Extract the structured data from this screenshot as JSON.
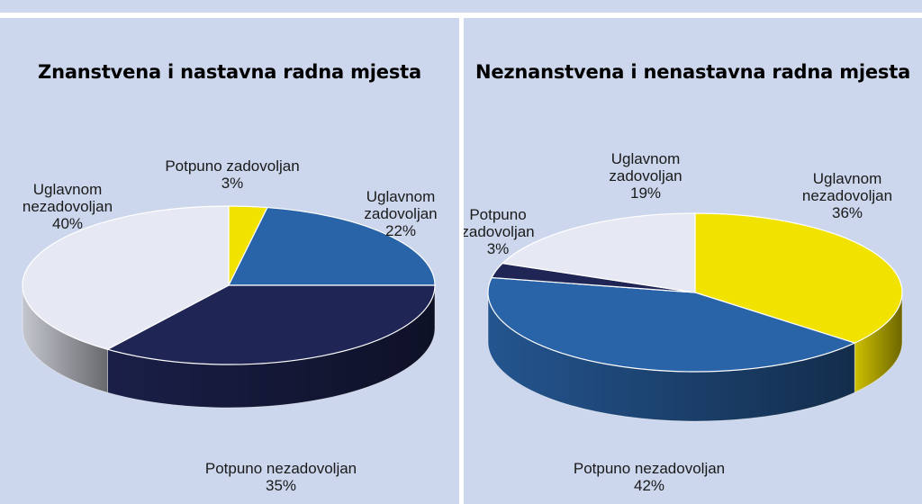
{
  "charts": [
    {
      "title": "Znanstvena i nastavna radna mjesta",
      "slices": [
        {
          "name": "Potpuno zadovoljan",
          "value": 3,
          "label_lines": [
            "Potpuno zadovoljan",
            "3%"
          ],
          "color": "#f2e200"
        },
        {
          "name": "Uglavnom zadovoljan",
          "value": 22,
          "label_lines": [
            "Uglavnom",
            "zadovoljan",
            "22%"
          ],
          "color": "#2a64a8"
        },
        {
          "name": "Potpuno nezadovoljan",
          "value": 35,
          "label_lines": [
            "Potpuno nezadovoljan",
            "35%"
          ],
          "color": "#1f2555"
        },
        {
          "name": "Uglavnom nezadovoljan",
          "value": 40,
          "label_lines": [
            "Uglavnom",
            "nezadovoljan",
            "40%"
          ],
          "color": "#e6e9f3"
        }
      ]
    },
    {
      "title": "Neznanstvena i nenastavna radna mjesta",
      "slices": [
        {
          "name": "Uglavnom nezadovoljan",
          "value": 36,
          "label_lines": [
            "Uglavnom",
            "nezadovoljan",
            "36%"
          ],
          "color": "#f2e200"
        },
        {
          "name": "Potpuno nezadovoljan",
          "value": 42,
          "label_lines": [
            "Potpuno nezadovoljan",
            "42%"
          ],
          "color": "#2a64a8"
        },
        {
          "name": "Potpuno zadovoljan",
          "value": 3,
          "label_lines": [
            "Potpuno",
            "zadovoljan",
            "3%"
          ],
          "color": "#1f2555"
        },
        {
          "name": "Uglavnom zadovoljan",
          "value": 19,
          "label_lines": [
            "Uglavnom",
            "zadovoljan",
            "19%"
          ],
          "color": "#e6e9f3"
        }
      ]
    }
  ],
  "chart_data": [
    {
      "type": "pie",
      "title": "Znanstvena i nastavna radna mjesta",
      "categories": [
        "Potpuno zadovoljan",
        "Uglavnom zadovoljan",
        "Potpuno nezadovoljan",
        "Uglavnom nezadovoljan"
      ],
      "values": [
        3,
        22,
        35,
        40
      ]
    },
    {
      "type": "pie",
      "title": "Neznanstvena i nenastavna radna mjesta",
      "categories": [
        "Uglavnom nezadovoljan",
        "Potpuno nezadovoljan",
        "Potpuno zadovoljan",
        "Uglavnom zadovoljan"
      ],
      "values": [
        36,
        42,
        3,
        19
      ]
    }
  ]
}
